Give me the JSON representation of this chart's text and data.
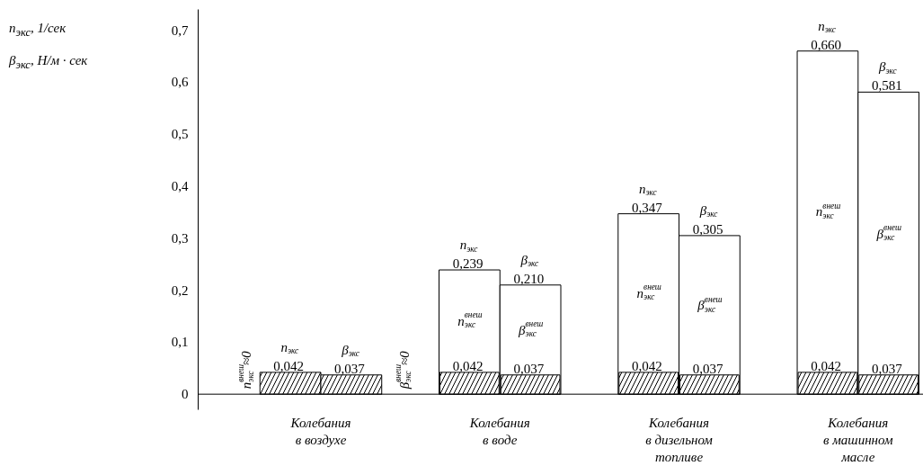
{
  "chart_data": {
    "type": "bar",
    "ylabel": "n$_{экс}$, 1/сек\nβ$_{экс}$, Н/м · сек",
    "categories": [
      "Колебания\nв воздухе",
      "Колебания\nв воде",
      "Колебания\nв дизельном\nтопливе",
      "Колебания\nв машинном\nмасле"
    ],
    "series": [
      {
        "name": "n$_{экс}$",
        "color": "#ffffff",
        "values": [
          0.042,
          0.239,
          0.347,
          0.66
        ],
        "value_labels": [
          "0,042",
          "0,239",
          "0,347",
          "0,660"
        ]
      },
      {
        "name": "β$_{экс}$",
        "color": "#ffffff",
        "values": [
          0.037,
          0.21,
          0.305,
          0.581
        ],
        "value_labels": [
          "0,037",
          "0,210",
          "0,305",
          "0,581"
        ]
      },
      {
        "color": "#ffffff",
        "values": [
          null,
          0.042,
          0.042,
          0.042
        ],
        "value_labels": [
          null,
          "0,042",
          "0,042",
          "0,042"
        ]
      },
      {
        "color": "#ffffff",
        "values": [
          null,
          0.037,
          0.037,
          0.037
        ],
        "value_labels": [
          null,
          "0,037",
          "0,037",
          "0,037"
        ]
      }
    ],
    "ylim": [
      -0.03,
      0.74
    ],
    "yticks": [
      {
        "value": 0,
        "label": "0"
      },
      {
        "value": 0.1,
        "label": "0,1"
      },
      {
        "value": 0.2,
        "label": "0,2"
      },
      {
        "value": 0.3,
        "label": "0,3"
      },
      {
        "value": 0.4,
        "label": "0,4"
      },
      {
        "value": 0.5,
        "label": "0,5"
      },
      {
        "value": 0.6,
        "label": "0,6"
      },
      {
        "value": 0.7,
        "label": "0,7"
      }
    ],
    "annotations": [
      "n$^{внеш}$$_{экс}$≈0",
      "β$^{внеш}$$_{экс}$≈0",
      "n$^{внеш}$$_{экс}$",
      "β$^{внеш}$$_{экс}$",
      "n$^{внеш}$$_{экс}$",
      "β$^{внеш}$$_{экс}$",
      "n$^{внеш}$$_{экс}$",
      "β$^{внеш}$$_{экс}$"
    ],
    "legend": false,
    "grid": false
  }
}
